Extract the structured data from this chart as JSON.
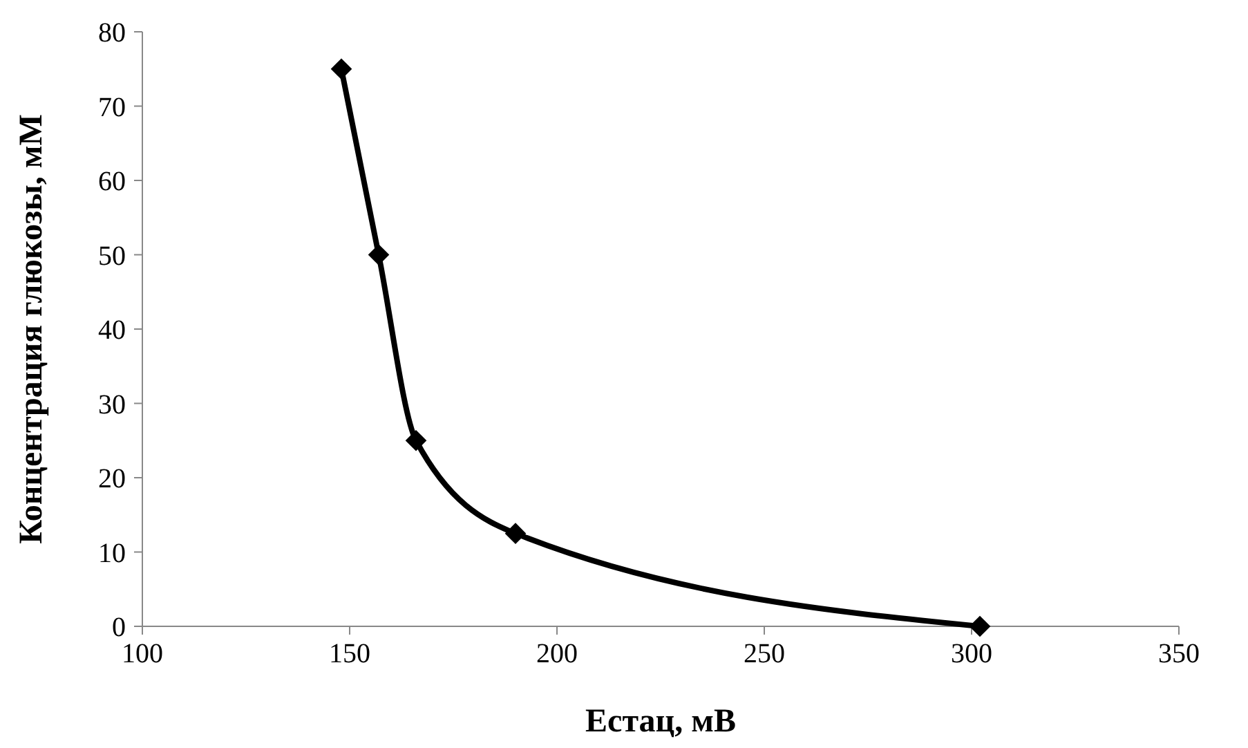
{
  "chart_data": {
    "type": "line",
    "xlabel": "Естац, мВ",
    "ylabel": "Концентрация глюкозы, мМ",
    "x": [
      148,
      157,
      166,
      190,
      302
    ],
    "series": [
      {
        "color": "#000000",
        "values": [
          75,
          50,
          25,
          12.5,
          0
        ]
      }
    ],
    "xlim": [
      100,
      350
    ],
    "xticks": [
      100,
      150,
      200,
      250,
      300,
      350
    ],
    "ylim": [
      0,
      80
    ],
    "yticks": [
      0,
      10,
      20,
      30,
      40,
      50,
      60,
      70,
      80
    ],
    "grid": false,
    "marker": "diamond",
    "line_style": "solid"
  }
}
